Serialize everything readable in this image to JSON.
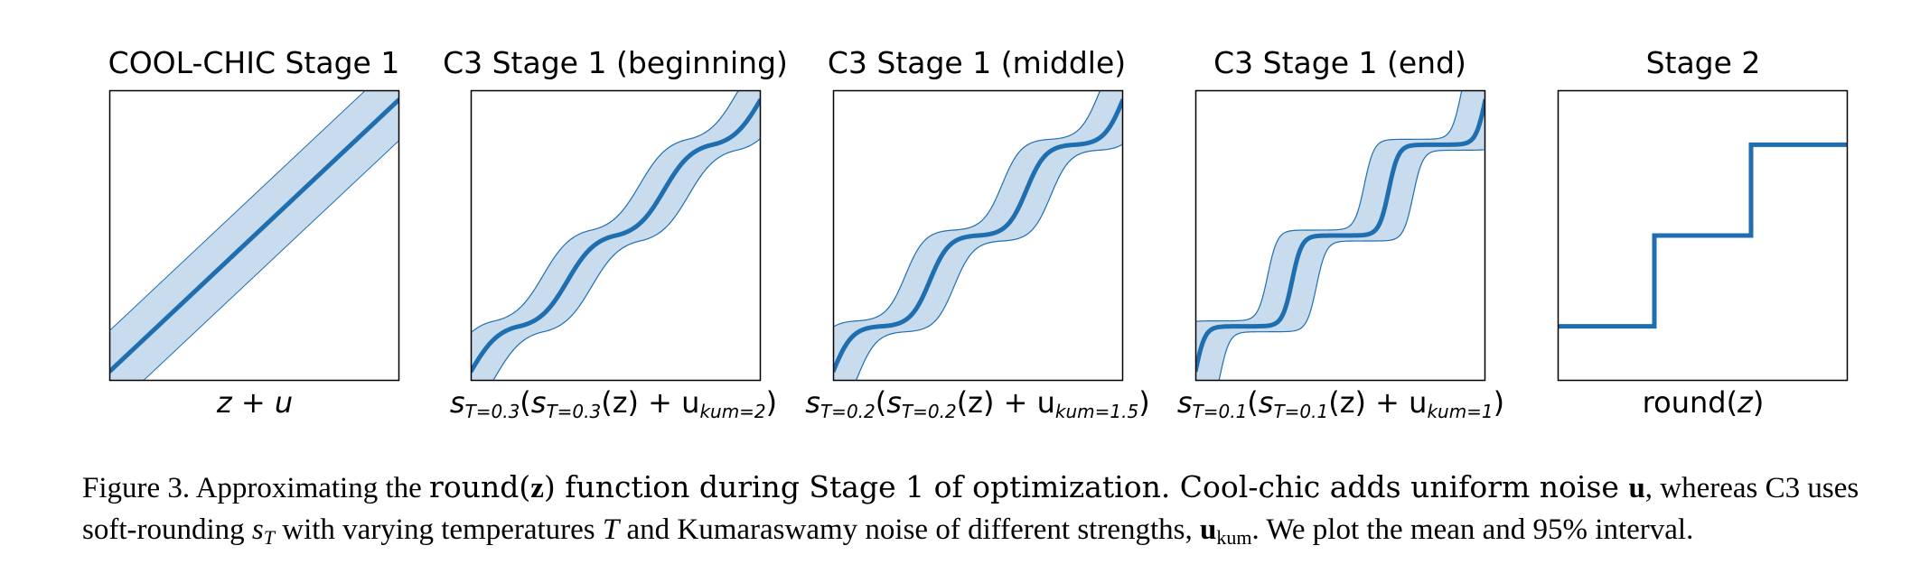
{
  "figure": {
    "panels": [
      {
        "title": "COOL-CHIC Stage 1",
        "xlabel_parts": [
          "z",
          " + ",
          "u"
        ],
        "kind": "linear"
      },
      {
        "title": "C3 Stage 1 (beginning)",
        "xlabel_parts": [
          "s",
          "T=0.3",
          "(",
          "s",
          "T=0.3",
          "(z) + u",
          "kum=2",
          ")"
        ],
        "kind": "soft",
        "temperature": 0.3
      },
      {
        "title": "C3 Stage 1 (middle)",
        "xlabel_parts": [
          "s",
          "T=0.2",
          "(",
          "s",
          "T=0.2",
          "(z) + u",
          "kum=1.5",
          ")"
        ],
        "kind": "soft",
        "temperature": 0.2
      },
      {
        "title": "C3 Stage 1 (end)",
        "xlabel_parts": [
          "s",
          "T=0.1",
          "(",
          "s",
          "T=0.1",
          "(z) + u",
          "kum=1",
          ")"
        ],
        "kind": "soft",
        "temperature": 0.1
      },
      {
        "title": "Stage 2",
        "xlabel_parts": [
          "round(",
          "z",
          ")"
        ],
        "kind": "step"
      }
    ],
    "colors": {
      "line": "#1f6eb0",
      "band": "#c8dcee",
      "band_edge": "#1f6eb0"
    }
  },
  "caption": {
    "line1_a": "Figure 3.  Approximating the ",
    "line1_round": "round(",
    "line1_z": "z",
    "line1_b": ") function during Stage 1 of optimization.  Cool-chic adds uniform noise ",
    "line1_u": "u",
    "line1_c": ", whereas C3 uses",
    "line2_a": "soft-rounding ",
    "line2_s": "s",
    "line2_T": "T",
    "line2_b": " with varying temperatures ",
    "line2_T2": "T",
    "line2_c": " and Kumaraswamy noise of different strengths, ",
    "line2_u": "u",
    "line2_kum": "kum",
    "line2_d": ". We plot the mean and 95% interval."
  }
}
